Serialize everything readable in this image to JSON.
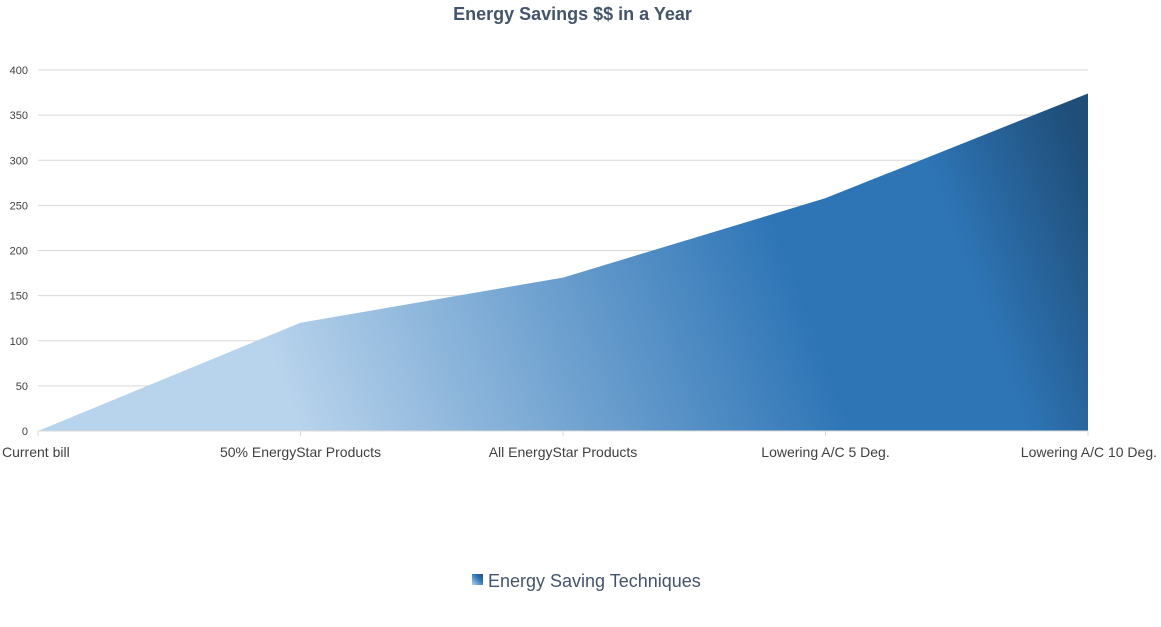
{
  "chart_data": {
    "type": "area",
    "title": "Energy Savings $$ in a Year",
    "xlabel": "",
    "ylabel": "",
    "categories": [
      "Current bill",
      "50% EnergyStar Products",
      "All EnergyStar Products",
      "Lowering A/C 5 Deg.",
      "Lowering A/C 10 Deg."
    ],
    "series": [
      {
        "name": "Energy Saving Techniques",
        "values": [
          0,
          120,
          170,
          258,
          374
        ]
      }
    ],
    "ylim": [
      0,
      400
    ],
    "yticks": [
      "0",
      "50",
      "100",
      "150",
      "200",
      "250",
      "300",
      "350",
      "400"
    ],
    "grid": true,
    "legend": "bottom",
    "colors": {
      "light": "#b8d3ec",
      "mid": "#2e75b6",
      "dark": "#1f4e79",
      "grid": "#d9d9d9",
      "title": "#44546a"
    }
  }
}
